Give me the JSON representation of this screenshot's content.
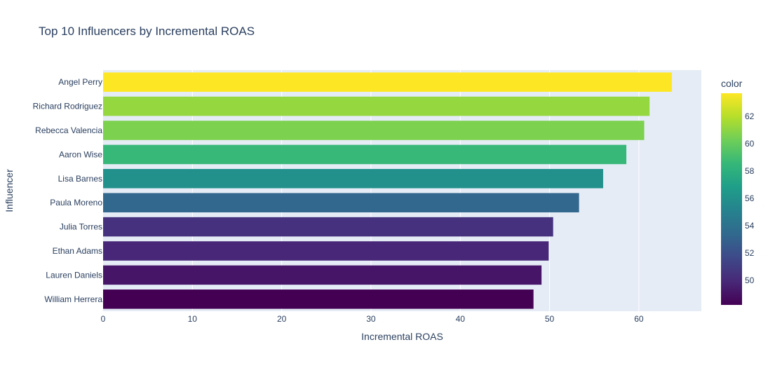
{
  "chart_data": {
    "type": "bar",
    "orientation": "horizontal",
    "title": "Top 10 Influencers by Incremental ROAS",
    "xlabel": "Incremental ROAS",
    "ylabel": "Influencer",
    "xlim": [
      0,
      67
    ],
    "x_ticks": [
      "0",
      "10",
      "20",
      "30",
      "40",
      "50",
      "60"
    ],
    "categories": [
      "Angel Perry",
      "Richard Rodriguez",
      "Rebecca Valencia",
      "Aaron Wise",
      "Lisa Barnes",
      "Paula Moreno",
      "Julia Torres",
      "Ethan Adams",
      "Lauren Daniels",
      "William Herrera"
    ],
    "values": [
      63.7,
      61.2,
      60.6,
      58.6,
      56.0,
      53.3,
      50.4,
      49.9,
      49.1,
      48.2
    ],
    "colorscale": "Viridis",
    "color_range": [
      48.2,
      63.7
    ],
    "colorbar": {
      "title": "color",
      "ticks": [
        "50",
        "52",
        "54",
        "56",
        "58",
        "60",
        "62"
      ],
      "tick_values": [
        50,
        52,
        54,
        56,
        58,
        60,
        62
      ]
    },
    "grid": true,
    "plot_background": "#e5ecf6",
    "text_color": "#2a3f5f"
  }
}
